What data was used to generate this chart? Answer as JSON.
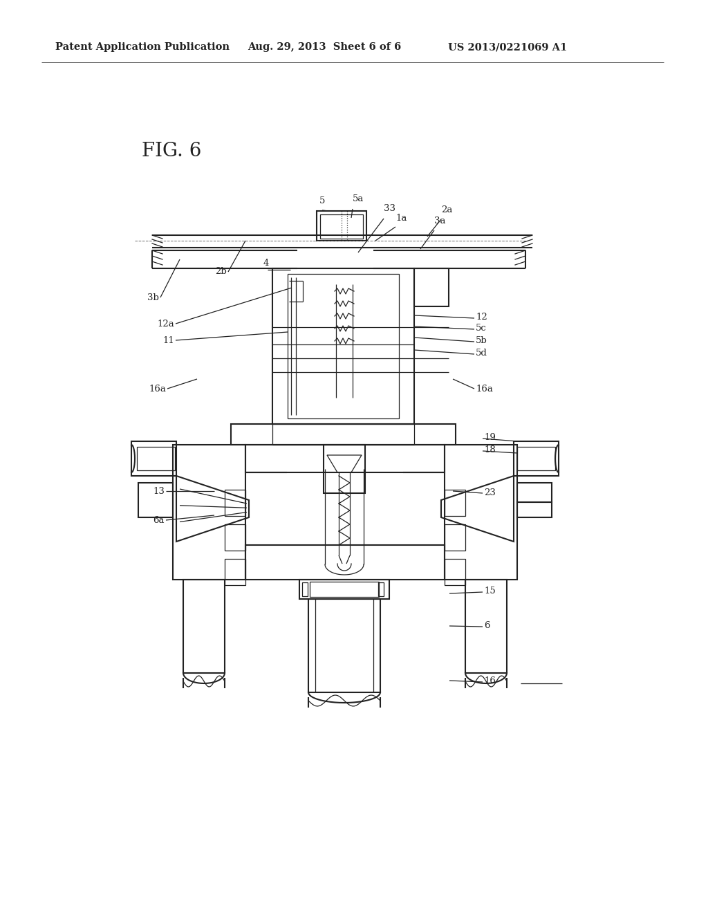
{
  "bg_color": "#ffffff",
  "line_color": "#222222",
  "header_left": "Patent Application Publication",
  "header_mid": "Aug. 29, 2013  Sheet 6 of 6",
  "header_right": "US 2013/0221069 A1",
  "fig_label": "FIG. 6",
  "label_fontsize": 9.5,
  "header_fontsize": 10.5,
  "fig_fontsize": 20
}
